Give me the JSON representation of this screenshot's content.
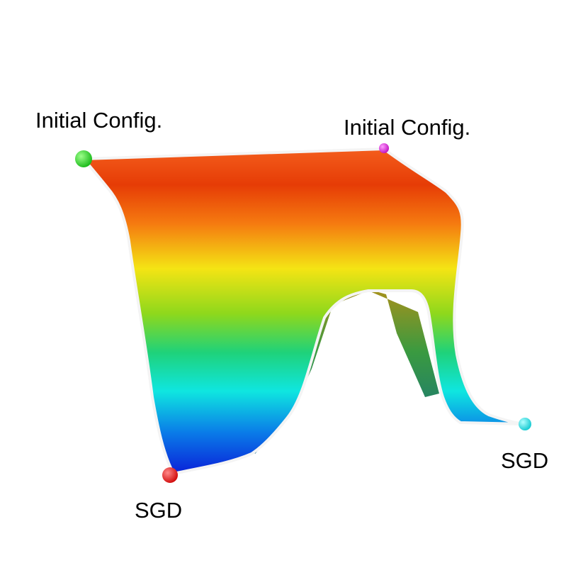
{
  "points": [
    {
      "label": "Initial Config."
    },
    {
      "label": "Initial Config."
    },
    {
      "label": "SGD"
    },
    {
      "label": "SGD"
    }
  ]
}
